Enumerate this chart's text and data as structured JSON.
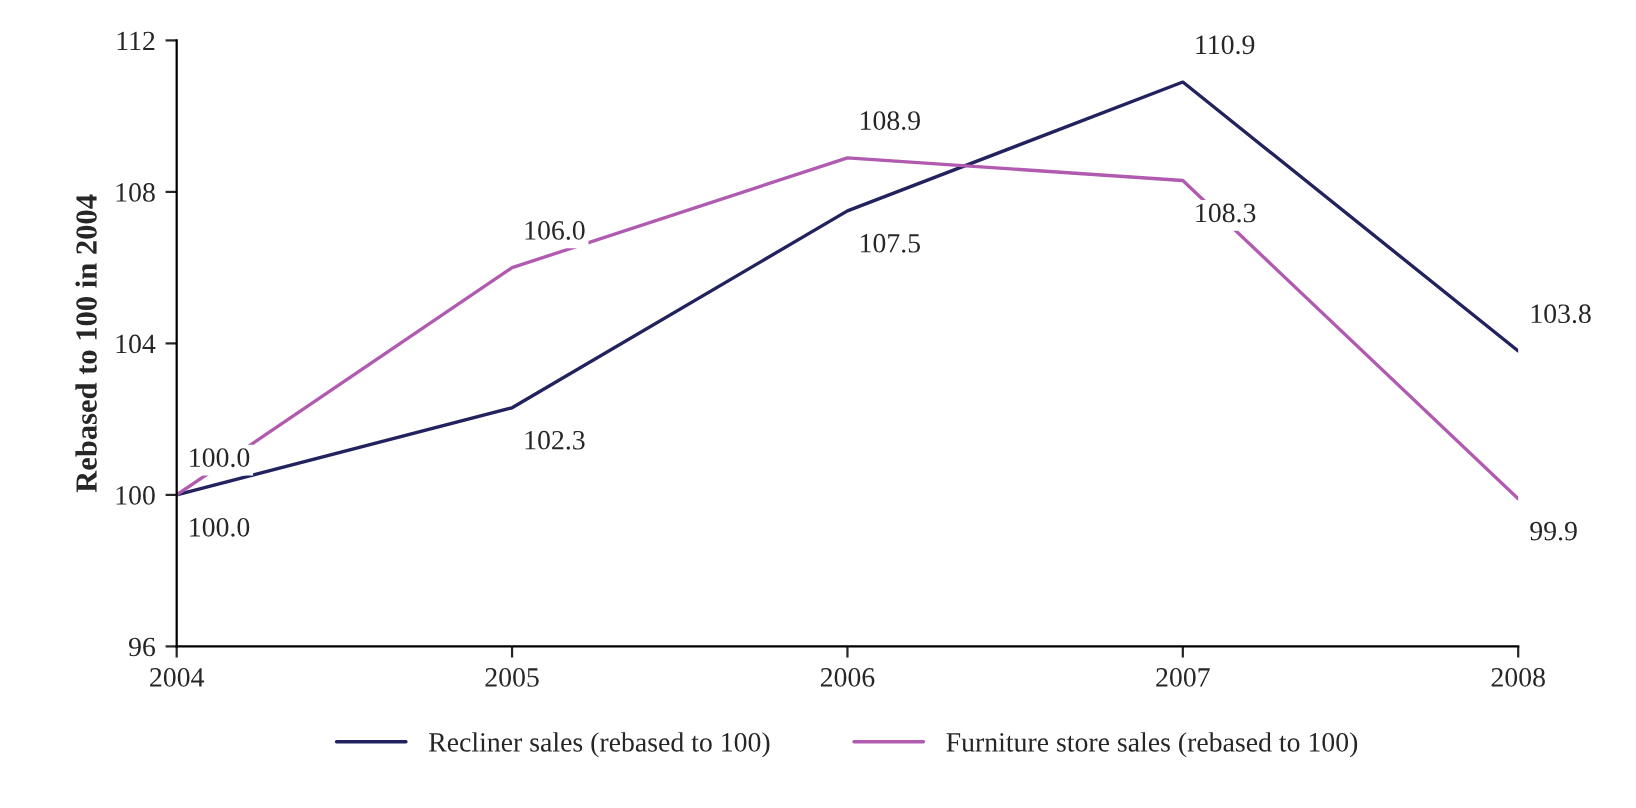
{
  "chart_data": {
    "type": "line",
    "ylabel": "Rebased to 100 in 2004",
    "x": [
      2004,
      2005,
      2006,
      2007,
      2008
    ],
    "series": [
      {
        "name": "Recliner sales (rebased to 100)",
        "color": "#22225e",
        "values": [
          100.0,
          102.3,
          107.5,
          110.9,
          103.8
        ],
        "value_labels": [
          "100.0",
          "102.3",
          "107.5",
          "110.9",
          "103.8"
        ]
      },
      {
        "name": "Furniture store sales (rebased to 100)",
        "color": "#b05ab0",
        "values": [
          100.0,
          106.0,
          108.9,
          108.3,
          99.9
        ],
        "value_labels": [
          "100.0",
          "106.0",
          "108.9",
          "108.3",
          "99.9"
        ]
      }
    ],
    "xlim": [
      2004,
      2008
    ],
    "xticks": [
      2004,
      2005,
      2006,
      2007,
      2008
    ],
    "ylim": [
      96,
      112
    ],
    "yticks": [
      96,
      100,
      104,
      108,
      112
    ],
    "legend": "bottom",
    "grid": false,
    "marker": "none",
    "line_style": "solid"
  }
}
